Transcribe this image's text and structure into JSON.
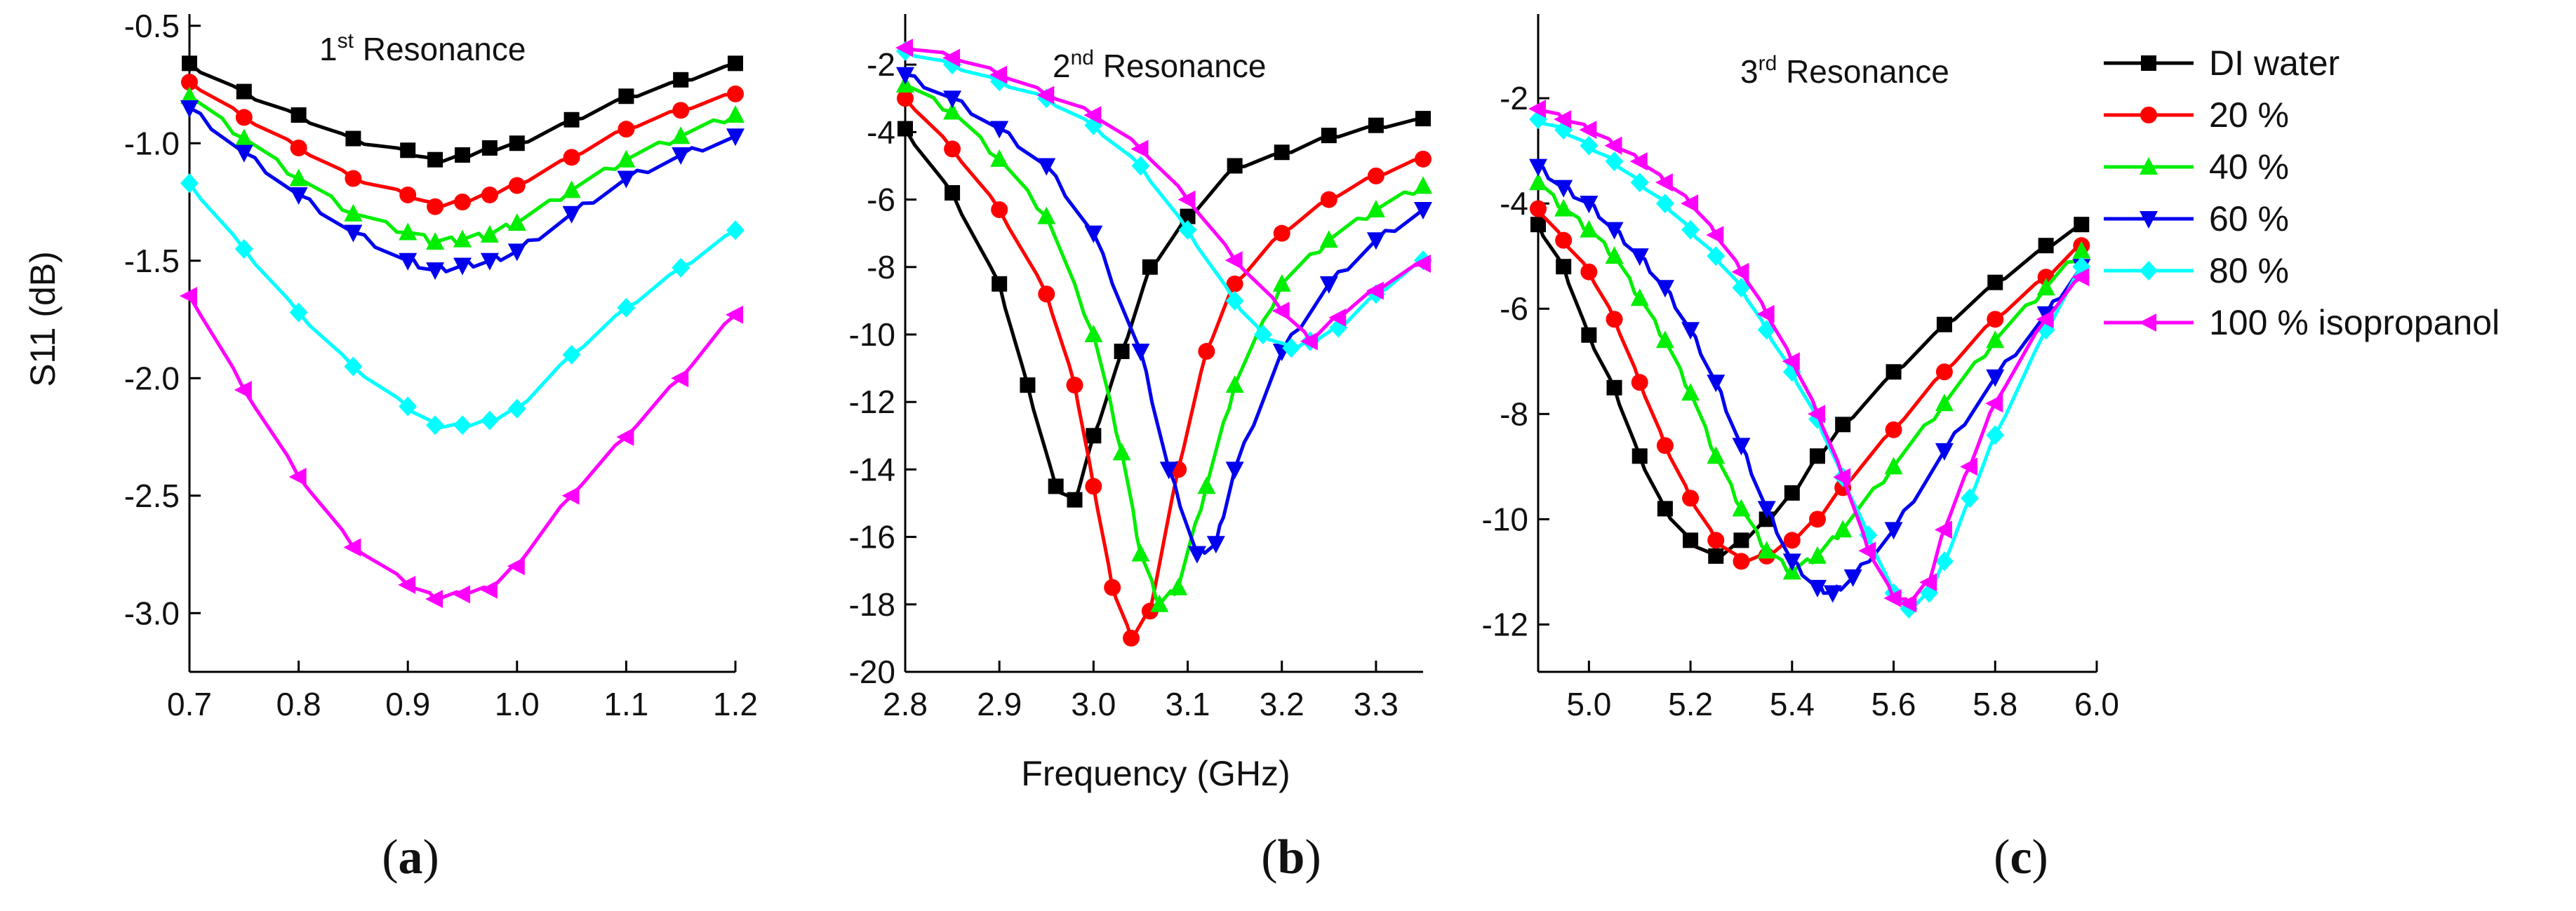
{
  "chart_data": [
    {
      "type": "line",
      "panel_label": "a",
      "title": "Resonance",
      "title_ordinal": "1",
      "title_sup": "st",
      "xlabel": "",
      "ylabel": "S11 (dB)",
      "xlim": [
        0.7,
        1.2
      ],
      "ylim": [
        -3.25,
        -0.45
      ],
      "xticks": [
        "0.7",
        "0.8",
        "0.9",
        "1.0",
        "1.1",
        "1.2"
      ],
      "yticks": [
        "-0.5",
        "-1.0",
        "-1.5",
        "-2.0",
        "-2.5",
        "-3.0"
      ],
      "series": [
        {
          "name": "DI water",
          "x": [
            0.7,
            0.75,
            0.8,
            0.85,
            0.9,
            0.925,
            0.95,
            0.975,
            1.0,
            1.05,
            1.1,
            1.15,
            1.2
          ],
          "y": [
            -0.66,
            -0.78,
            -0.88,
            -0.98,
            -1.03,
            -1.07,
            -1.05,
            -1.02,
            -1.0,
            -0.9,
            -0.8,
            -0.73,
            -0.66
          ]
        },
        {
          "name": "20 %",
          "x": [
            0.7,
            0.75,
            0.8,
            0.85,
            0.9,
            0.925,
            0.95,
            0.975,
            1.0,
            1.05,
            1.1,
            1.15,
            1.2
          ],
          "y": [
            -0.74,
            -0.89,
            -1.02,
            -1.15,
            -1.22,
            -1.27,
            -1.25,
            -1.22,
            -1.18,
            -1.06,
            -0.94,
            -0.86,
            -0.79
          ]
        },
        {
          "name": "40 %",
          "x": [
            0.7,
            0.75,
            0.8,
            0.85,
            0.9,
            0.925,
            0.95,
            0.975,
            1.0,
            1.05,
            1.1,
            1.15,
            1.2
          ],
          "y": [
            -0.8,
            -0.98,
            -1.15,
            -1.3,
            -1.38,
            -1.42,
            -1.41,
            -1.39,
            -1.34,
            -1.2,
            -1.07,
            -0.97,
            -0.88
          ]
        },
        {
          "name": "60 %",
          "x": [
            0.7,
            0.75,
            0.8,
            0.85,
            0.9,
            0.925,
            0.95,
            0.975,
            1.0,
            1.05,
            1.1,
            1.15,
            1.2
          ],
          "y": [
            -0.85,
            -1.04,
            -1.22,
            -1.38,
            -1.5,
            -1.54,
            -1.52,
            -1.5,
            -1.46,
            -1.3,
            -1.15,
            -1.05,
            -0.97
          ]
        },
        {
          "name": "80 %",
          "x": [
            0.7,
            0.75,
            0.8,
            0.85,
            0.9,
            0.925,
            0.95,
            0.975,
            1.0,
            1.05,
            1.1,
            1.15,
            1.2
          ],
          "y": [
            -1.17,
            -1.45,
            -1.72,
            -1.95,
            -2.12,
            -2.2,
            -2.2,
            -2.18,
            -2.13,
            -1.9,
            -1.7,
            -1.53,
            -1.37
          ]
        },
        {
          "name": "100 % isopropanol",
          "x": [
            0.7,
            0.75,
            0.8,
            0.85,
            0.9,
            0.925,
            0.95,
            0.975,
            1.0,
            1.05,
            1.1,
            1.15,
            1.2
          ],
          "y": [
            -1.65,
            -2.05,
            -2.42,
            -2.72,
            -2.88,
            -2.94,
            -2.92,
            -2.9,
            -2.8,
            -2.5,
            -2.25,
            -2.0,
            -1.73
          ]
        }
      ]
    },
    {
      "type": "line",
      "panel_label": "b",
      "title": "Resonance",
      "title_ordinal": "2",
      "title_sup": "nd",
      "xlabel": "Frequency (GHz)",
      "ylabel": "",
      "xlim": [
        2.8,
        3.35
      ],
      "ylim": [
        -20,
        -0.5
      ],
      "xticks": [
        "2.8",
        "2.9",
        "3.0",
        "3.1",
        "3.2",
        "3.3"
      ],
      "yticks": [
        "-2",
        "-4",
        "-6",
        "-8",
        "-10",
        "-12",
        "-14",
        "-16",
        "-18",
        "-20"
      ],
      "series": [
        {
          "name": "DI water",
          "x": [
            2.8,
            2.85,
            2.9,
            2.93,
            2.96,
            2.98,
            3.0,
            3.03,
            3.06,
            3.1,
            3.15,
            3.2,
            3.25,
            3.3,
            3.35
          ],
          "y": [
            -3.9,
            -5.8,
            -8.5,
            -11.5,
            -14.5,
            -14.9,
            -13.0,
            -10.5,
            -8.0,
            -6.5,
            -5.0,
            -4.6,
            -4.1,
            -3.8,
            -3.6
          ]
        },
        {
          "name": "20 %",
          "x": [
            2.8,
            2.85,
            2.9,
            2.95,
            2.98,
            3.0,
            3.02,
            3.04,
            3.06,
            3.09,
            3.12,
            3.15,
            3.2,
            3.25,
            3.3,
            3.35
          ],
          "y": [
            -3.0,
            -4.5,
            -6.3,
            -8.8,
            -11.5,
            -14.5,
            -17.5,
            -19.0,
            -18.2,
            -14.0,
            -10.5,
            -8.5,
            -7.0,
            -6.0,
            -5.3,
            -4.8
          ]
        },
        {
          "name": "40 %",
          "x": [
            2.8,
            2.85,
            2.9,
            2.95,
            3.0,
            3.03,
            3.05,
            3.07,
            3.09,
            3.12,
            3.15,
            3.2,
            3.25,
            3.3,
            3.35
          ],
          "y": [
            -2.6,
            -3.4,
            -4.8,
            -6.5,
            -10.0,
            -13.5,
            -16.5,
            -18.0,
            -17.5,
            -14.5,
            -11.5,
            -8.5,
            -7.2,
            -6.3,
            -5.6
          ]
        },
        {
          "name": "60 %",
          "x": [
            2.8,
            2.85,
            2.9,
            2.95,
            3.0,
            3.05,
            3.08,
            3.11,
            3.13,
            3.15,
            3.2,
            3.25,
            3.3,
            3.35
          ],
          "y": [
            -2.3,
            -3.0,
            -3.9,
            -5.0,
            -7.0,
            -10.5,
            -14.0,
            -16.5,
            -16.2,
            -14.0,
            -10.5,
            -8.5,
            -7.2,
            -6.3
          ]
        },
        {
          "name": "80 %",
          "x": [
            2.8,
            2.85,
            2.9,
            2.95,
            3.0,
            3.05,
            3.1,
            3.15,
            3.18,
            3.21,
            3.23,
            3.26,
            3.3,
            3.35
          ],
          "y": [
            -1.6,
            -2.0,
            -2.5,
            -3.0,
            -3.8,
            -5.0,
            -6.9,
            -9.0,
            -10.0,
            -10.4,
            -10.2,
            -9.8,
            -8.8,
            -7.8
          ]
        },
        {
          "name": "100 % isopropanol",
          "x": [
            2.8,
            2.85,
            2.9,
            2.95,
            3.0,
            3.05,
            3.1,
            3.15,
            3.2,
            3.23,
            3.26,
            3.3,
            3.35
          ],
          "y": [
            -1.5,
            -1.8,
            -2.3,
            -2.9,
            -3.5,
            -4.5,
            -6.0,
            -7.8,
            -9.3,
            -10.2,
            -9.5,
            -8.7,
            -7.9
          ]
        }
      ]
    },
    {
      "type": "line",
      "panel_label": "c",
      "title": "Resonance",
      "title_ordinal": "3",
      "title_sup": "rd",
      "xlabel": "",
      "ylabel": "",
      "xlim": [
        4.9,
        6.0
      ],
      "ylim": [
        -12.9,
        -0.4
      ],
      "xticks": [
        "5.0",
        "5.2",
        "5.4",
        "5.6",
        "5.8",
        "6.0"
      ],
      "yticks": [
        "-2",
        "-4",
        "-6",
        "-8",
        "-10",
        "-12"
      ],
      "series": [
        {
          "name": "DI water",
          "x": [
            4.9,
            4.95,
            5.0,
            5.05,
            5.1,
            5.15,
            5.2,
            5.25,
            5.3,
            5.35,
            5.4,
            5.45,
            5.5,
            5.6,
            5.7,
            5.8,
            5.9,
            5.97
          ],
          "y": [
            -4.4,
            -5.2,
            -6.5,
            -7.5,
            -8.8,
            -9.8,
            -10.4,
            -10.7,
            -10.4,
            -10.0,
            -9.5,
            -8.8,
            -8.2,
            -7.2,
            -6.3,
            -5.5,
            -4.8,
            -4.4
          ]
        },
        {
          "name": "20 %",
          "x": [
            4.9,
            4.95,
            5.0,
            5.05,
            5.1,
            5.15,
            5.2,
            5.25,
            5.3,
            5.35,
            5.4,
            5.45,
            5.5,
            5.6,
            5.7,
            5.8,
            5.9,
            5.97
          ],
          "y": [
            -4.1,
            -4.7,
            -5.3,
            -6.2,
            -7.4,
            -8.6,
            -9.6,
            -10.4,
            -10.8,
            -10.7,
            -10.4,
            -10.0,
            -9.4,
            -8.3,
            -7.2,
            -6.2,
            -5.4,
            -4.8
          ]
        },
        {
          "name": "40 %",
          "x": [
            4.9,
            4.95,
            5.0,
            5.05,
            5.1,
            5.15,
            5.2,
            5.25,
            5.3,
            5.35,
            5.4,
            5.45,
            5.5,
            5.6,
            5.7,
            5.8,
            5.9,
            5.97
          ],
          "y": [
            -3.6,
            -4.1,
            -4.5,
            -5.0,
            -5.8,
            -6.6,
            -7.6,
            -8.8,
            -9.8,
            -10.6,
            -11.0,
            -10.7,
            -10.2,
            -9.0,
            -7.8,
            -6.6,
            -5.6,
            -4.9
          ]
        },
        {
          "name": "60 %",
          "x": [
            4.9,
            4.95,
            5.0,
            5.05,
            5.1,
            5.15,
            5.2,
            5.25,
            5.3,
            5.35,
            5.4,
            5.45,
            5.48,
            5.52,
            5.6,
            5.7,
            5.8,
            5.9,
            5.97
          ],
          "y": [
            -3.3,
            -3.7,
            -4.0,
            -4.5,
            -5.0,
            -5.6,
            -6.4,
            -7.4,
            -8.6,
            -9.8,
            -10.8,
            -11.3,
            -11.4,
            -11.1,
            -10.2,
            -8.7,
            -7.3,
            -6.1,
            -5.2
          ]
        },
        {
          "name": "80 %",
          "x": [
            4.9,
            4.95,
            5.0,
            5.05,
            5.1,
            5.15,
            5.2,
            5.25,
            5.3,
            5.35,
            5.4,
            5.45,
            5.5,
            5.55,
            5.6,
            5.63,
            5.67,
            5.7,
            5.75,
            5.8,
            5.9,
            5.97
          ],
          "y": [
            -2.4,
            -2.6,
            -2.9,
            -3.2,
            -3.6,
            -4.0,
            -4.5,
            -5.0,
            -5.6,
            -6.4,
            -7.2,
            -8.1,
            -9.2,
            -10.3,
            -11.4,
            -11.7,
            -11.4,
            -10.8,
            -9.6,
            -8.4,
            -6.4,
            -5.2
          ]
        },
        {
          "name": "100 % isopropanol",
          "x": [
            4.9,
            4.95,
            5.0,
            5.05,
            5.1,
            5.15,
            5.2,
            5.25,
            5.3,
            5.35,
            5.4,
            5.45,
            5.5,
            5.55,
            5.6,
            5.63,
            5.67,
            5.7,
            5.75,
            5.8,
            5.9,
            5.97
          ],
          "y": [
            -2.2,
            -2.4,
            -2.6,
            -2.9,
            -3.2,
            -3.6,
            -4.0,
            -4.6,
            -5.3,
            -6.1,
            -7.0,
            -8.0,
            -9.2,
            -10.6,
            -11.5,
            -11.6,
            -11.2,
            -10.2,
            -9.0,
            -7.8,
            -6.2,
            -5.4
          ]
        }
      ]
    }
  ],
  "legend": {
    "position": "top-right",
    "entries": [
      "DI water",
      "20 %",
      "40 %",
      "60 %",
      "80 %",
      "100 % isopropanol"
    ]
  },
  "series_styles": [
    {
      "color": "#000000",
      "marker": "square"
    },
    {
      "color": "#ff0000",
      "marker": "circle"
    },
    {
      "color": "#00ee00",
      "marker": "triangle-up"
    },
    {
      "color": "#0000ee",
      "marker": "triangle-down"
    },
    {
      "color": "#00ffff",
      "marker": "diamond"
    },
    {
      "color": "#ff00ff",
      "marker": "triangle-left"
    }
  ]
}
